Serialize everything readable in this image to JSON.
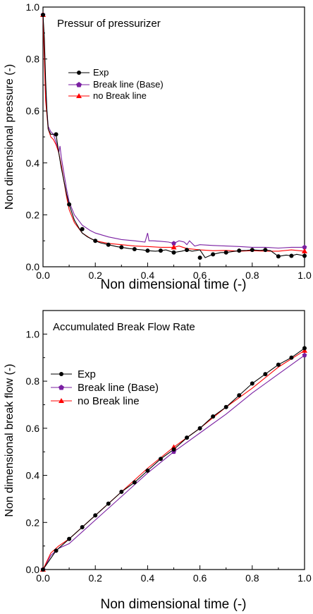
{
  "chart_data": [
    {
      "type": "line",
      "title": "Pressur of pressurizer",
      "xlabel": "Non dimensional time (-)",
      "ylabel": "Non dimensional pressure (-)",
      "xlim": [
        0.0,
        1.0
      ],
      "ylim": [
        0.0,
        1.0
      ],
      "xticks": [
        "0.0",
        "0.2",
        "0.4",
        "0.6",
        "0.8",
        "1.0"
      ],
      "yticks": [
        "0.0",
        "0.2",
        "0.4",
        "0.6",
        "0.8",
        "1.0"
      ],
      "grid": false,
      "legend_position": "upper-left",
      "series": [
        {
          "name": "Exp",
          "color": "#000000",
          "marker": "circle",
          "x": [
            0.0,
            0.005,
            0.01,
            0.015,
            0.02,
            0.03,
            0.04,
            0.05,
            0.06,
            0.07,
            0.08,
            0.09,
            0.1,
            0.12,
            0.14,
            0.15,
            0.17,
            0.2,
            0.22,
            0.25,
            0.28,
            0.3,
            0.33,
            0.35,
            0.38,
            0.4,
            0.43,
            0.45,
            0.47,
            0.5,
            0.53,
            0.55,
            0.57,
            0.6,
            0.62,
            0.65,
            0.68,
            0.7,
            0.72,
            0.75,
            0.78,
            0.8,
            0.83,
            0.85,
            0.87,
            0.9,
            0.93,
            0.95,
            0.97,
            1.0
          ],
          "y": [
            0.97,
            0.88,
            0.72,
            0.6,
            0.53,
            0.51,
            0.51,
            0.51,
            0.44,
            0.38,
            0.33,
            0.28,
            0.24,
            0.18,
            0.145,
            0.13,
            0.115,
            0.1,
            0.092,
            0.085,
            0.078,
            0.075,
            0.07,
            0.068,
            0.065,
            0.062,
            0.06,
            0.062,
            0.065,
            0.055,
            0.06,
            0.065,
            0.06,
            0.065,
            0.035,
            0.048,
            0.055,
            0.055,
            0.058,
            0.062,
            0.063,
            0.065,
            0.063,
            0.065,
            0.062,
            0.04,
            0.045,
            0.042,
            0.048,
            0.042
          ],
          "marker_x": [
            0.0,
            0.05,
            0.1,
            0.15,
            0.2,
            0.25,
            0.3,
            0.35,
            0.4,
            0.45,
            0.5,
            0.55,
            0.6,
            0.65,
            0.7,
            0.75,
            0.8,
            0.85,
            0.9,
            0.95,
            1.0
          ],
          "marker_y": [
            0.97,
            0.51,
            0.24,
            0.145,
            0.1,
            0.085,
            0.075,
            0.068,
            0.062,
            0.062,
            0.055,
            0.065,
            0.035,
            0.048,
            0.055,
            0.062,
            0.065,
            0.065,
            0.04,
            0.042,
            0.042
          ]
        },
        {
          "name": "Break line (Base)",
          "color": "#7a1fa2",
          "marker": "pentagon",
          "x": [
            0.0,
            0.005,
            0.01,
            0.02,
            0.03,
            0.04,
            0.05,
            0.06,
            0.065,
            0.07,
            0.08,
            0.09,
            0.1,
            0.12,
            0.15,
            0.18,
            0.2,
            0.25,
            0.3,
            0.35,
            0.39,
            0.4,
            0.405,
            0.42,
            0.45,
            0.48,
            0.5,
            0.52,
            0.54,
            0.55,
            0.56,
            0.58,
            0.6,
            0.65,
            0.7,
            0.75,
            0.8,
            0.85,
            0.9,
            0.95,
            1.0
          ],
          "y": [
            0.97,
            0.82,
            0.66,
            0.54,
            0.52,
            0.51,
            0.48,
            0.44,
            0.465,
            0.42,
            0.36,
            0.3,
            0.25,
            0.2,
            0.16,
            0.14,
            0.13,
            0.115,
            0.105,
            0.1,
            0.095,
            0.13,
            0.1,
            0.1,
            0.098,
            0.095,
            0.09,
            0.1,
            0.095,
            0.085,
            0.1,
            0.08,
            0.085,
            0.082,
            0.08,
            0.078,
            0.075,
            0.075,
            0.072,
            0.075,
            0.075
          ],
          "marker_x": [
            0.0,
            0.5,
            1.0
          ],
          "marker_y": [
            0.97,
            0.09,
            0.075
          ]
        },
        {
          "name": "no Break line",
          "color": "#ff0000",
          "marker": "triangle",
          "x": [
            0.0,
            0.005,
            0.01,
            0.02,
            0.03,
            0.04,
            0.05,
            0.06,
            0.07,
            0.08,
            0.09,
            0.1,
            0.12,
            0.15,
            0.18,
            0.2,
            0.25,
            0.3,
            0.35,
            0.4,
            0.45,
            0.5,
            0.52,
            0.55,
            0.6,
            0.65,
            0.7,
            0.75,
            0.8,
            0.85,
            0.9,
            0.95,
            1.0
          ],
          "y": [
            0.97,
            0.8,
            0.64,
            0.53,
            0.5,
            0.49,
            0.47,
            0.44,
            0.39,
            0.33,
            0.27,
            0.22,
            0.17,
            0.13,
            0.11,
            0.1,
            0.09,
            0.085,
            0.08,
            0.078,
            0.075,
            0.075,
            0.08,
            0.07,
            0.065,
            0.062,
            0.063,
            0.06,
            0.062,
            0.06,
            0.06,
            0.065,
            0.06
          ],
          "marker_x": [
            0.0,
            0.5,
            1.0
          ],
          "marker_y": [
            0.97,
            0.075,
            0.06
          ]
        }
      ]
    },
    {
      "type": "line",
      "title": "Accumulated Break Flow Rate",
      "xlabel": "Non dimensional time (-)",
      "ylabel": "Non dimensional break flow (-)",
      "xlim": [
        0.0,
        1.0
      ],
      "ylim": [
        0.0,
        1.1
      ],
      "xticks": [
        "0.0",
        "0.2",
        "0.4",
        "0.6",
        "0.8",
        "1.0"
      ],
      "yticks": [
        "0.0",
        "0.2",
        "0.4",
        "0.6",
        "0.8",
        "1.0"
      ],
      "grid": false,
      "legend_position": "upper-left",
      "series": [
        {
          "name": "Exp",
          "color": "#000000",
          "marker": "circle",
          "x": [
            0.0,
            0.05,
            0.1,
            0.15,
            0.2,
            0.25,
            0.3,
            0.35,
            0.4,
            0.45,
            0.5,
            0.55,
            0.6,
            0.65,
            0.7,
            0.75,
            0.8,
            0.85,
            0.9,
            0.95,
            1.0
          ],
          "y": [
            0.0,
            0.08,
            0.13,
            0.18,
            0.23,
            0.28,
            0.33,
            0.37,
            0.42,
            0.47,
            0.51,
            0.56,
            0.6,
            0.65,
            0.69,
            0.74,
            0.79,
            0.83,
            0.87,
            0.9,
            0.94
          ]
        },
        {
          "name": "Break line (Base)",
          "color": "#7a1fa2",
          "marker": "pentagon",
          "x": [
            0.0,
            0.03,
            0.06,
            0.1,
            0.2,
            0.3,
            0.4,
            0.5,
            0.6,
            0.7,
            0.8,
            0.9,
            1.0
          ],
          "y": [
            0.0,
            0.06,
            0.09,
            0.11,
            0.21,
            0.31,
            0.41,
            0.5,
            0.58,
            0.66,
            0.75,
            0.83,
            0.91
          ],
          "marker_x": [
            0.0,
            0.5,
            1.0
          ],
          "marker_y": [
            0.0,
            0.5,
            0.91
          ]
        },
        {
          "name": "no Break line",
          "color": "#ff0000",
          "marker": "triangle",
          "x": [
            0.0,
            0.03,
            0.06,
            0.1,
            0.2,
            0.3,
            0.4,
            0.5,
            0.6,
            0.7,
            0.8,
            0.9,
            1.0
          ],
          "y": [
            0.0,
            0.07,
            0.1,
            0.13,
            0.23,
            0.33,
            0.43,
            0.52,
            0.6,
            0.69,
            0.77,
            0.86,
            0.93
          ],
          "marker_x": [
            0.0,
            0.5,
            1.0
          ],
          "marker_y": [
            0.0,
            0.52,
            0.93
          ]
        }
      ]
    }
  ]
}
